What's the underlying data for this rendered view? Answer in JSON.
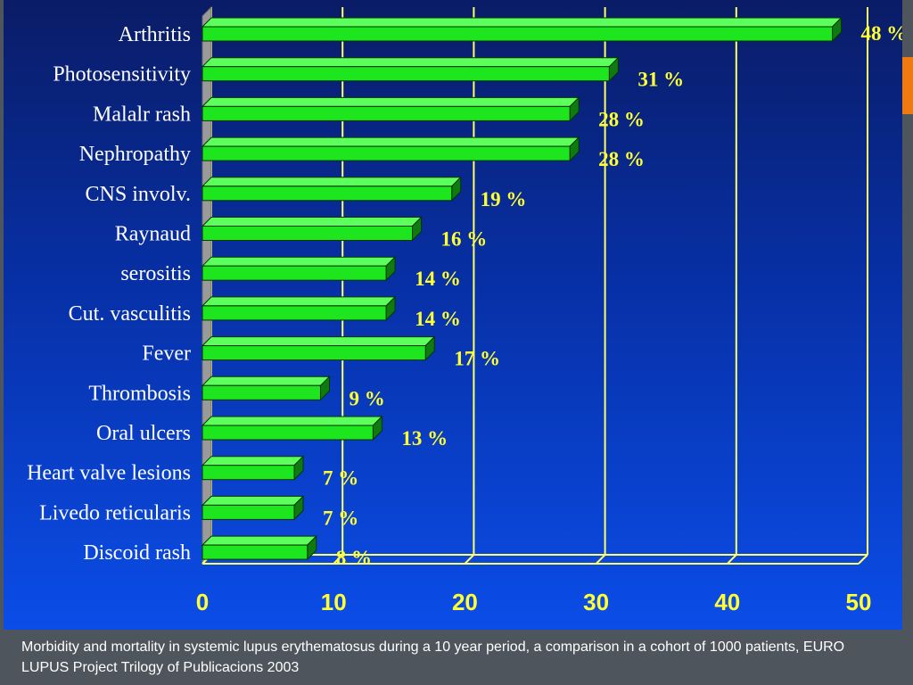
{
  "chart_data": {
    "type": "bar",
    "orientation": "horizontal",
    "categories": [
      "Arthritis",
      "Photosensitivity",
      "Malalr rash",
      "Nephropathy",
      "CNS involv.",
      "Raynaud",
      "serositis",
      "Cut. vasculitis",
      "Fever",
      "Thrombosis",
      "Oral ulcers",
      "Heart valve lesions",
      "Livedo reticularis",
      "Discoid rash"
    ],
    "values": [
      48,
      31,
      28,
      28,
      19,
      16,
      14,
      14,
      17,
      9,
      13,
      7,
      7,
      8
    ],
    "value_labels": [
      "48 %",
      "31 %",
      "28 %",
      "28 %",
      "19 %",
      "16 %",
      "14 %",
      "14 %",
      "17 %",
      "9 %",
      "13 %",
      "7 %",
      "7 %",
      "8 %"
    ],
    "title": "",
    "xlabel": "",
    "ylabel": "",
    "xlim": [
      0,
      50
    ],
    "xticks": [
      "0",
      "10",
      "20",
      "30",
      "40",
      "50"
    ],
    "grid": true,
    "bar_color": "#1ee61e",
    "grid_color": "#ffff66",
    "label_color": "#ffff33"
  },
  "caption": "Morbidity and mortality in systemic lupus erythematosus during a 10 year period, a comparison in a cohort of 1000 patients,  EURO LUPUS Project Trilogy of Publicacions 2003"
}
